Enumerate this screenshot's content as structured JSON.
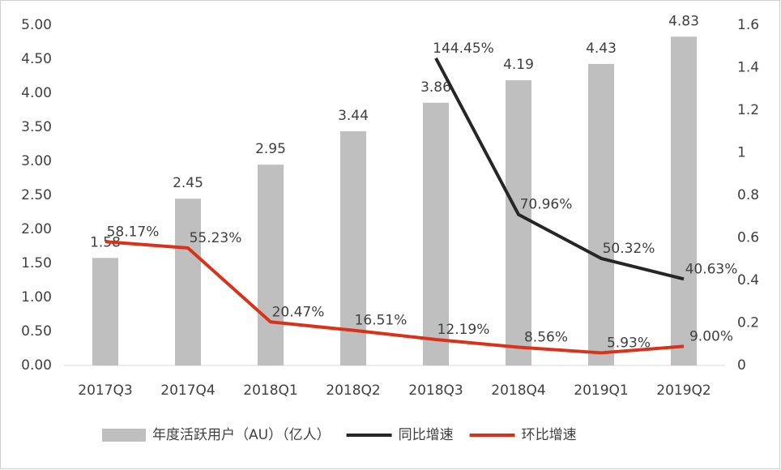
{
  "chart_data": {
    "type": "bar",
    "categories": [
      "2017Q3",
      "2017Q4",
      "2018Q1",
      "2018Q2",
      "2018Q3",
      "2018Q4",
      "2019Q1",
      "2019Q2"
    ],
    "series": [
      {
        "name": "年度活跃用户（AU）（亿人）",
        "type": "bar",
        "axis": "y",
        "color": "#bfbfbf",
        "values": [
          1.58,
          2.45,
          2.95,
          3.44,
          3.86,
          4.19,
          4.43,
          4.83
        ]
      },
      {
        "name": "同比增速",
        "type": "line",
        "axis": "y2",
        "color": "#262626",
        "values": [
          null,
          null,
          null,
          null,
          1.4445,
          0.7096,
          0.5032,
          0.4063
        ],
        "value_labels": [
          null,
          null,
          null,
          null,
          "144.45%",
          "70.96%",
          "50.32%",
          "40.63%"
        ]
      },
      {
        "name": "环比增速",
        "type": "line",
        "axis": "y2",
        "color": "#d9321a",
        "values": [
          0.5817,
          0.5523,
          0.2047,
          0.1651,
          0.1219,
          0.0856,
          0.0593,
          0.09
        ],
        "value_labels": [
          "58.17%",
          "55.23%",
          "20.47%",
          "16.51%",
          "12.19%",
          "8.56%",
          "5.93%",
          "9.00%"
        ]
      }
    ],
    "ylim": [
      0,
      5
    ],
    "yticks": [
      {
        "value": 0,
        "label": "0.00"
      },
      {
        "value": 0.5,
        "label": "0.50"
      },
      {
        "value": 1,
        "label": "1.00"
      },
      {
        "value": 1.5,
        "label": "1.50"
      },
      {
        "value": 2,
        "label": "2.00"
      },
      {
        "value": 2.5,
        "label": "2.50"
      },
      {
        "value": 3,
        "label": "3.00"
      },
      {
        "value": 3.5,
        "label": "3.50"
      },
      {
        "value": 4,
        "label": "4.00"
      },
      {
        "value": 4.5,
        "label": "4.50"
      },
      {
        "value": 5,
        "label": "5.00"
      }
    ],
    "y2lim": [
      0,
      1.6
    ],
    "y2ticks": [
      0,
      0.2,
      0.4,
      0.6,
      0.8,
      1,
      1.2,
      1.4,
      1.6
    ],
    "legend": "bottom"
  }
}
